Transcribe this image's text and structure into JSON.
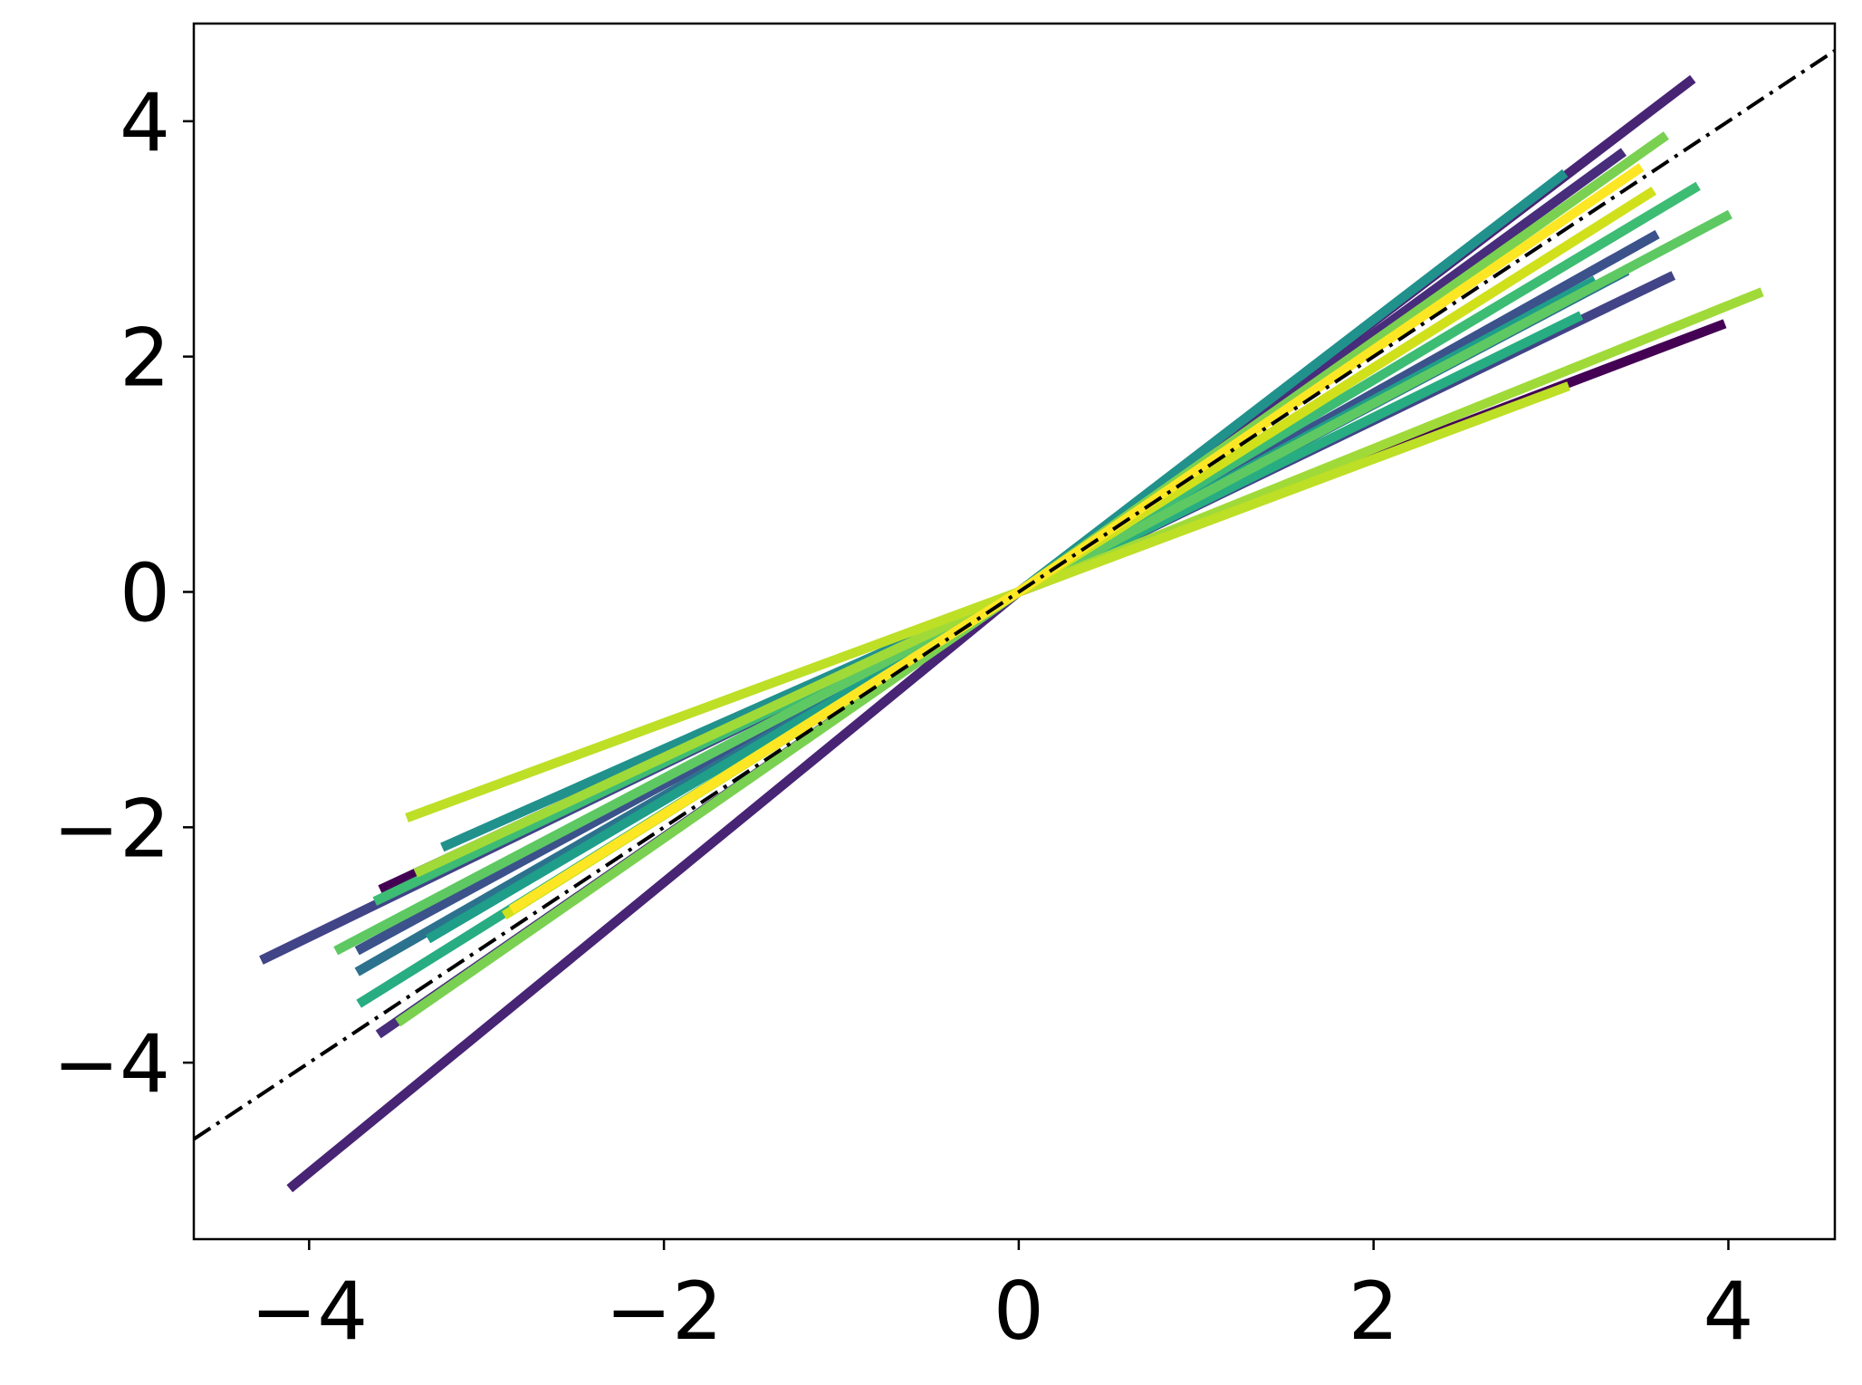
{
  "chart_data": {
    "type": "line",
    "xlim": [
      -4.65,
      4.6
    ],
    "ylim": [
      -5.5,
      4.83
    ],
    "xticks": [
      {
        "value": -4,
        "label": "−4"
      },
      {
        "value": -2,
        "label": "−2"
      },
      0,
      2,
      4
    ],
    "yticks": [
      {
        "value": -4,
        "label": "−4"
      },
      {
        "value": -2,
        "label": "−2"
      },
      0,
      2,
      4
    ],
    "reference_line": {
      "x": [
        -4.65,
        4.6
      ],
      "values": [
        -4.65,
        4.6
      ],
      "color": "#000000"
    },
    "series": [
      {
        "color": "#440154",
        "x": [
          -3.6,
          0,
          3.98
        ],
        "values": [
          -2.53,
          0,
          2.28
        ]
      },
      {
        "color": "#482475",
        "x": [
          -4.11,
          0,
          3.8
        ],
        "values": [
          -5.07,
          0,
          4.36
        ]
      },
      {
        "color": "#414487",
        "x": [
          -4.27,
          0,
          3.69
        ],
        "values": [
          -3.13,
          0,
          2.69
        ]
      },
      {
        "color": "#472d7b",
        "x": [
          -3.61,
          0,
          3.41
        ],
        "values": [
          -3.76,
          0,
          3.74
        ]
      },
      {
        "color": "#3b528b",
        "x": [
          -3.73,
          0,
          3.6
        ],
        "values": [
          -3.05,
          0,
          3.04
        ]
      },
      {
        "color": "#2c728e",
        "x": [
          -3.73,
          0,
          3.43
        ],
        "values": [
          -3.23,
          0,
          2.73
        ]
      },
      {
        "color": "#21918c",
        "x": [
          -3.25,
          0,
          3.08
        ],
        "values": [
          -2.17,
          0,
          3.56
        ]
      },
      {
        "color": "#1f9e89",
        "x": [
          -3.33,
          0,
          3.25
        ],
        "values": [
          -2.95,
          0,
          2.65
        ]
      },
      {
        "color": "#27ad81",
        "x": [
          -3.72,
          0,
          3.17
        ],
        "values": [
          -3.5,
          0,
          2.35
        ]
      },
      {
        "color": "#3dbc74",
        "x": [
          -3.63,
          0,
          3.83
        ],
        "values": [
          -2.63,
          0,
          3.45
        ]
      },
      {
        "color": "#5ec962",
        "x": [
          -3.85,
          0,
          4.01
        ],
        "values": [
          -3.05,
          0,
          3.21
        ]
      },
      {
        "color": "#7ad151",
        "x": [
          -3.5,
          0,
          3.65
        ],
        "values": [
          -3.66,
          0,
          3.88
        ]
      },
      {
        "color": "#a0da39",
        "x": [
          -3.4,
          0,
          4.19
        ],
        "values": [
          -2.39,
          0,
          2.55
        ]
      },
      {
        "color": "#bddf26",
        "x": [
          -3.45,
          0,
          3.1
        ],
        "values": [
          -1.92,
          0,
          1.75
        ]
      },
      {
        "color": "#d0e11c",
        "x": [
          -2.9,
          0,
          3.58
        ],
        "values": [
          -2.75,
          0,
          3.41
        ]
      },
      {
        "color": "#fde725",
        "x": [
          -2.86,
          0,
          3.51
        ],
        "values": [
          -2.7,
          0,
          3.61
        ]
      }
    ]
  }
}
